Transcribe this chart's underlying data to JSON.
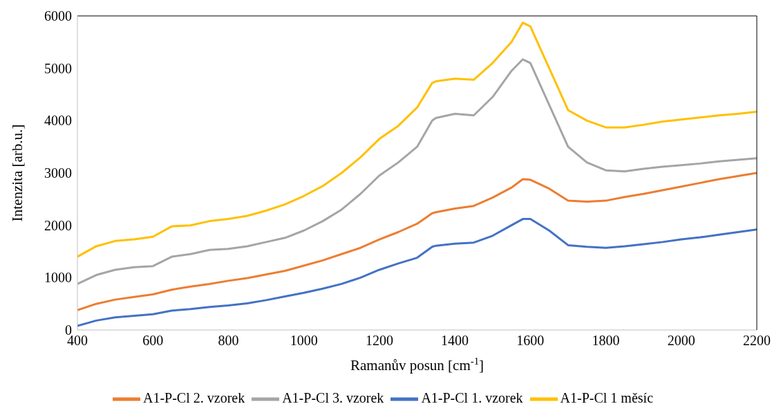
{
  "chart_data": {
    "type": "line",
    "xlabel": "Ramanův posun [cm$^{-1}$]",
    "ylabel": "Intenzita [arb.u.]",
    "x": [
      400,
      450,
      500,
      550,
      600,
      650,
      700,
      750,
      800,
      850,
      900,
      950,
      1000,
      1050,
      1100,
      1150,
      1200,
      1250,
      1300,
      1340,
      1350,
      1400,
      1450,
      1500,
      1550,
      1580,
      1600,
      1650,
      1700,
      1750,
      1800,
      1850,
      1900,
      1950,
      2000,
      2050,
      2100,
      2150,
      2200
    ],
    "xlim": [
      400,
      2200
    ],
    "xticks": [
      400,
      600,
      800,
      1000,
      1200,
      1400,
      1600,
      1800,
      2000,
      2200
    ],
    "ylim": [
      0,
      6000
    ],
    "yticks": [
      0,
      1000,
      2000,
      3000,
      4000,
      5000,
      6000
    ],
    "grid": false,
    "legend": "bottom",
    "marker": "none",
    "line_style": "solid",
    "series": [
      {
        "name": "A1-P-Cl 2. vzorek",
        "color": "#ed7d31",
        "values": [
          380,
          500,
          580,
          630,
          680,
          770,
          830,
          880,
          940,
          990,
          1060,
          1130,
          1230,
          1330,
          1450,
          1570,
          1730,
          1870,
          2030,
          2230,
          2250,
          2320,
          2370,
          2530,
          2720,
          2880,
          2870,
          2700,
          2470,
          2450,
          2470,
          2540,
          2600,
          2670,
          2740,
          2810,
          2880,
          2940,
          3000
        ]
      },
      {
        "name": "A1-P-Cl 3. vzorek",
        "color": "#a5a5a5",
        "values": [
          880,
          1050,
          1150,
          1200,
          1220,
          1400,
          1450,
          1530,
          1550,
          1600,
          1680,
          1760,
          1900,
          2080,
          2300,
          2600,
          2950,
          3200,
          3500,
          4000,
          4050,
          4130,
          4100,
          4450,
          4950,
          5170,
          5100,
          4300,
          3500,
          3200,
          3050,
          3030,
          3080,
          3120,
          3150,
          3180,
          3220,
          3250,
          3280
        ]
      },
      {
        "name": "A1-P-Cl 1. vzorek",
        "color": "#4472c4",
        "values": [
          80,
          180,
          240,
          270,
          300,
          370,
          400,
          440,
          470,
          510,
          570,
          640,
          710,
          790,
          880,
          1000,
          1150,
          1270,
          1380,
          1590,
          1610,
          1650,
          1670,
          1800,
          2000,
          2120,
          2120,
          1900,
          1620,
          1590,
          1570,
          1600,
          1640,
          1680,
          1730,
          1770,
          1820,
          1870,
          1920
        ]
      },
      {
        "name": "A1-P-Cl 1 měsíc",
        "color": "#ffc000",
        "values": [
          1400,
          1600,
          1700,
          1730,
          1780,
          1980,
          2000,
          2080,
          2120,
          2180,
          2280,
          2400,
          2560,
          2750,
          3000,
          3300,
          3650,
          3900,
          4250,
          4720,
          4750,
          4800,
          4780,
          5100,
          5500,
          5870,
          5800,
          5000,
          4200,
          4000,
          3870,
          3870,
          3920,
          3980,
          4020,
          4060,
          4100,
          4130,
          4170
        ]
      }
    ]
  }
}
